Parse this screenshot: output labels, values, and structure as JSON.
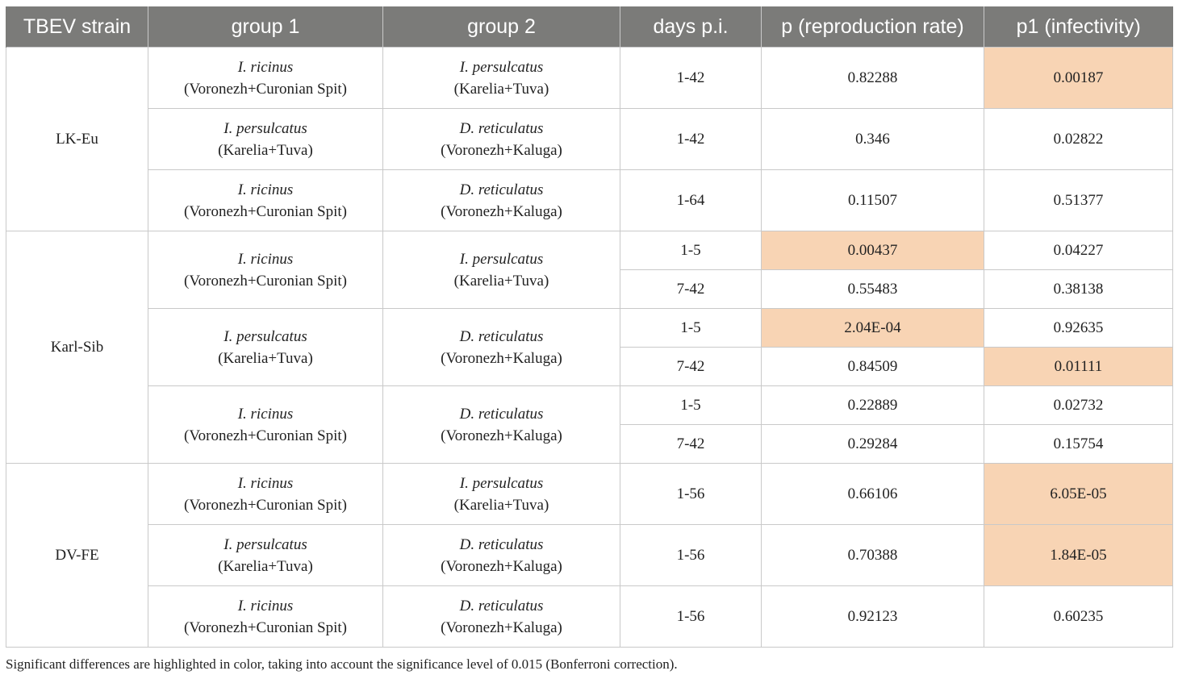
{
  "columns": [
    "TBEV strain",
    "group 1",
    "group 2",
    "days p.i.",
    "p (reproduction rate)",
    "p1 (infectivity)"
  ],
  "strains": [
    {
      "name": "LK-Eu",
      "comparisons": [
        {
          "group1": {
            "species": "I. ricinus",
            "locations": "(Voronezh+Curonian Spit)"
          },
          "group2": {
            "species": "I. persulcatus",
            "locations": "(Karelia+Tuva)"
          },
          "periods": [
            {
              "days": "1-42",
              "p": "0.82288",
              "p1": "0.00187",
              "p_hl": false,
              "p1_hl": true
            }
          ]
        },
        {
          "group1": {
            "species": "I. persulcatus",
            "locations": "(Karelia+Tuva)"
          },
          "group2": {
            "species": "D. reticulatus",
            "locations": "(Voronezh+Kaluga)"
          },
          "periods": [
            {
              "days": "1-42",
              "p": "0.346",
              "p1": "0.02822",
              "p_hl": false,
              "p1_hl": false
            }
          ]
        },
        {
          "group1": {
            "species": "I. ricinus",
            "locations": "(Voronezh+Curonian Spit)"
          },
          "group2": {
            "species": "D. reticulatus",
            "locations": "(Voronezh+Kaluga)"
          },
          "periods": [
            {
              "days": "1-64",
              "p": "0.11507",
              "p1": "0.51377",
              "p_hl": false,
              "p1_hl": false
            }
          ]
        }
      ]
    },
    {
      "name": "Karl-Sib",
      "comparisons": [
        {
          "group1": {
            "species": "I. ricinus",
            "locations": "(Voronezh+Curonian Spit)"
          },
          "group2": {
            "species": "I. persulcatus",
            "locations": "(Karelia+Tuva)"
          },
          "periods": [
            {
              "days": "1-5",
              "p": "0.00437",
              "p1": "0.04227",
              "p_hl": true,
              "p1_hl": false
            },
            {
              "days": "7-42",
              "p": "0.55483",
              "p1": "0.38138",
              "p_hl": false,
              "p1_hl": false
            }
          ]
        },
        {
          "group1": {
            "species": "I. persulcatus",
            "locations": "(Karelia+Tuva)"
          },
          "group2": {
            "species": "D. reticulatus",
            "locations": "(Voronezh+Kaluga)"
          },
          "periods": [
            {
              "days": "1-5",
              "p": "2.04E-04",
              "p1": "0.92635",
              "p_hl": true,
              "p1_hl": false
            },
            {
              "days": "7-42",
              "p": "0.84509",
              "p1": "0.01111",
              "p_hl": false,
              "p1_hl": true
            }
          ]
        },
        {
          "group1": {
            "species": "I. ricinus",
            "locations": "(Voronezh+Curonian Spit)"
          },
          "group2": {
            "species": "D. reticulatus",
            "locations": "(Voronezh+Kaluga)"
          },
          "periods": [
            {
              "days": "1-5",
              "p": "0.22889",
              "p1": "0.02732",
              "p_hl": false,
              "p1_hl": false
            },
            {
              "days": "7-42",
              "p": "0.29284",
              "p1": "0.15754",
              "p_hl": false,
              "p1_hl": false
            }
          ]
        }
      ]
    },
    {
      "name": "DV-FE",
      "comparisons": [
        {
          "group1": {
            "species": "I. ricinus",
            "locations": "(Voronezh+Curonian Spit)"
          },
          "group2": {
            "species": "I. persulcatus",
            "locations": "(Karelia+Tuva)"
          },
          "periods": [
            {
              "days": "1-56",
              "p": "0.66106",
              "p1": "6.05E-05",
              "p_hl": false,
              "p1_hl": true
            }
          ]
        },
        {
          "group1": {
            "species": "I. persulcatus",
            "locations": "(Karelia+Tuva)"
          },
          "group2": {
            "species": "D. reticulatus",
            "locations": "(Voronezh+Kaluga)"
          },
          "periods": [
            {
              "days": "1-56",
              "p": "0.70388",
              "p1": "1.84E-05",
              "p_hl": false,
              "p1_hl": true
            }
          ]
        },
        {
          "group1": {
            "species": "I. ricinus",
            "locations": "(Voronezh+Curonian Spit)"
          },
          "group2": {
            "species": "D. reticulatus",
            "locations": "(Voronezh+Kaluga)"
          },
          "periods": [
            {
              "days": "1-56",
              "p": "0.92123",
              "p1": "0.60235",
              "p_hl": false,
              "p1_hl": false
            }
          ]
        }
      ]
    }
  ],
  "footnote": "Significant differences are highlighted in color, taking into account the significance level of 0.015 (Bonferroni correction).",
  "colors": {
    "header_bg": "#7b7b79",
    "highlight": "#f8d4b4",
    "border": "#c9c9c9"
  }
}
